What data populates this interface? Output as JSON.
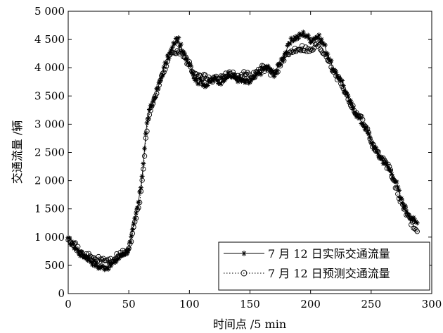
{
  "chart_data": {
    "type": "line",
    "title": "",
    "xlabel": "时间点 /5 min",
    "ylabel": "交通流量 /辆",
    "xlim": [
      0,
      300
    ],
    "ylim": [
      0,
      5000
    ],
    "x_tick_labels": [
      "0",
      "50",
      "100",
      "150",
      "200",
      "250",
      "300"
    ],
    "y_tick_labels": [
      "0",
      "500",
      "1 000",
      "1 500",
      "2 000",
      "2 500",
      "3 000",
      "3 500",
      "4 000",
      "4 500",
      "5 000"
    ],
    "grid": false,
    "legend_position": "bottom-right",
    "x": [
      0,
      5,
      10,
      15,
      20,
      25,
      30,
      35,
      40,
      45,
      50,
      55,
      60,
      65,
      70,
      75,
      80,
      85,
      90,
      95,
      100,
      105,
      110,
      115,
      120,
      125,
      130,
      135,
      140,
      145,
      150,
      155,
      160,
      165,
      170,
      175,
      180,
      185,
      190,
      195,
      200,
      205,
      210,
      215,
      220,
      225,
      230,
      235,
      240,
      245,
      250,
      255,
      260,
      265,
      270,
      275,
      280,
      285,
      288
    ],
    "series": [
      {
        "name": "7 月 12 日实际交通流量",
        "marker": "star",
        "line_style": "solid",
        "values": [
          950,
          840,
          710,
          650,
          560,
          480,
          470,
          500,
          600,
          700,
          820,
          1300,
          1900,
          3000,
          3400,
          3700,
          4050,
          4300,
          4500,
          4250,
          4100,
          3800,
          3750,
          3700,
          3800,
          3750,
          3850,
          3850,
          3800,
          3750,
          3750,
          3850,
          3950,
          4000,
          3900,
          4100,
          4300,
          4500,
          4550,
          4600,
          4500,
          4550,
          4450,
          4200,
          3900,
          3800,
          3500,
          3300,
          3100,
          2950,
          2700,
          2500,
          2350,
          2200,
          2000,
          1650,
          1450,
          1300,
          1250
        ]
      },
      {
        "name": "7 月 12 日预测交通流量",
        "marker": "circle",
        "line_style": "dotted",
        "values": [
          1000,
          880,
          720,
          680,
          620,
          600,
          600,
          580,
          650,
          720,
          800,
          1250,
          1800,
          2900,
          3400,
          3700,
          4000,
          4250,
          4300,
          4200,
          4050,
          3850,
          3850,
          3800,
          3800,
          3800,
          3850,
          3900,
          3850,
          3900,
          3850,
          3900,
          4000,
          3950,
          3900,
          4050,
          4200,
          4300,
          4350,
          4350,
          4300,
          4400,
          4300,
          4150,
          3900,
          3750,
          3500,
          3300,
          3150,
          3000,
          2700,
          2500,
          2350,
          2200,
          1900,
          1600,
          1400,
          1200,
          1100
        ]
      }
    ]
  }
}
